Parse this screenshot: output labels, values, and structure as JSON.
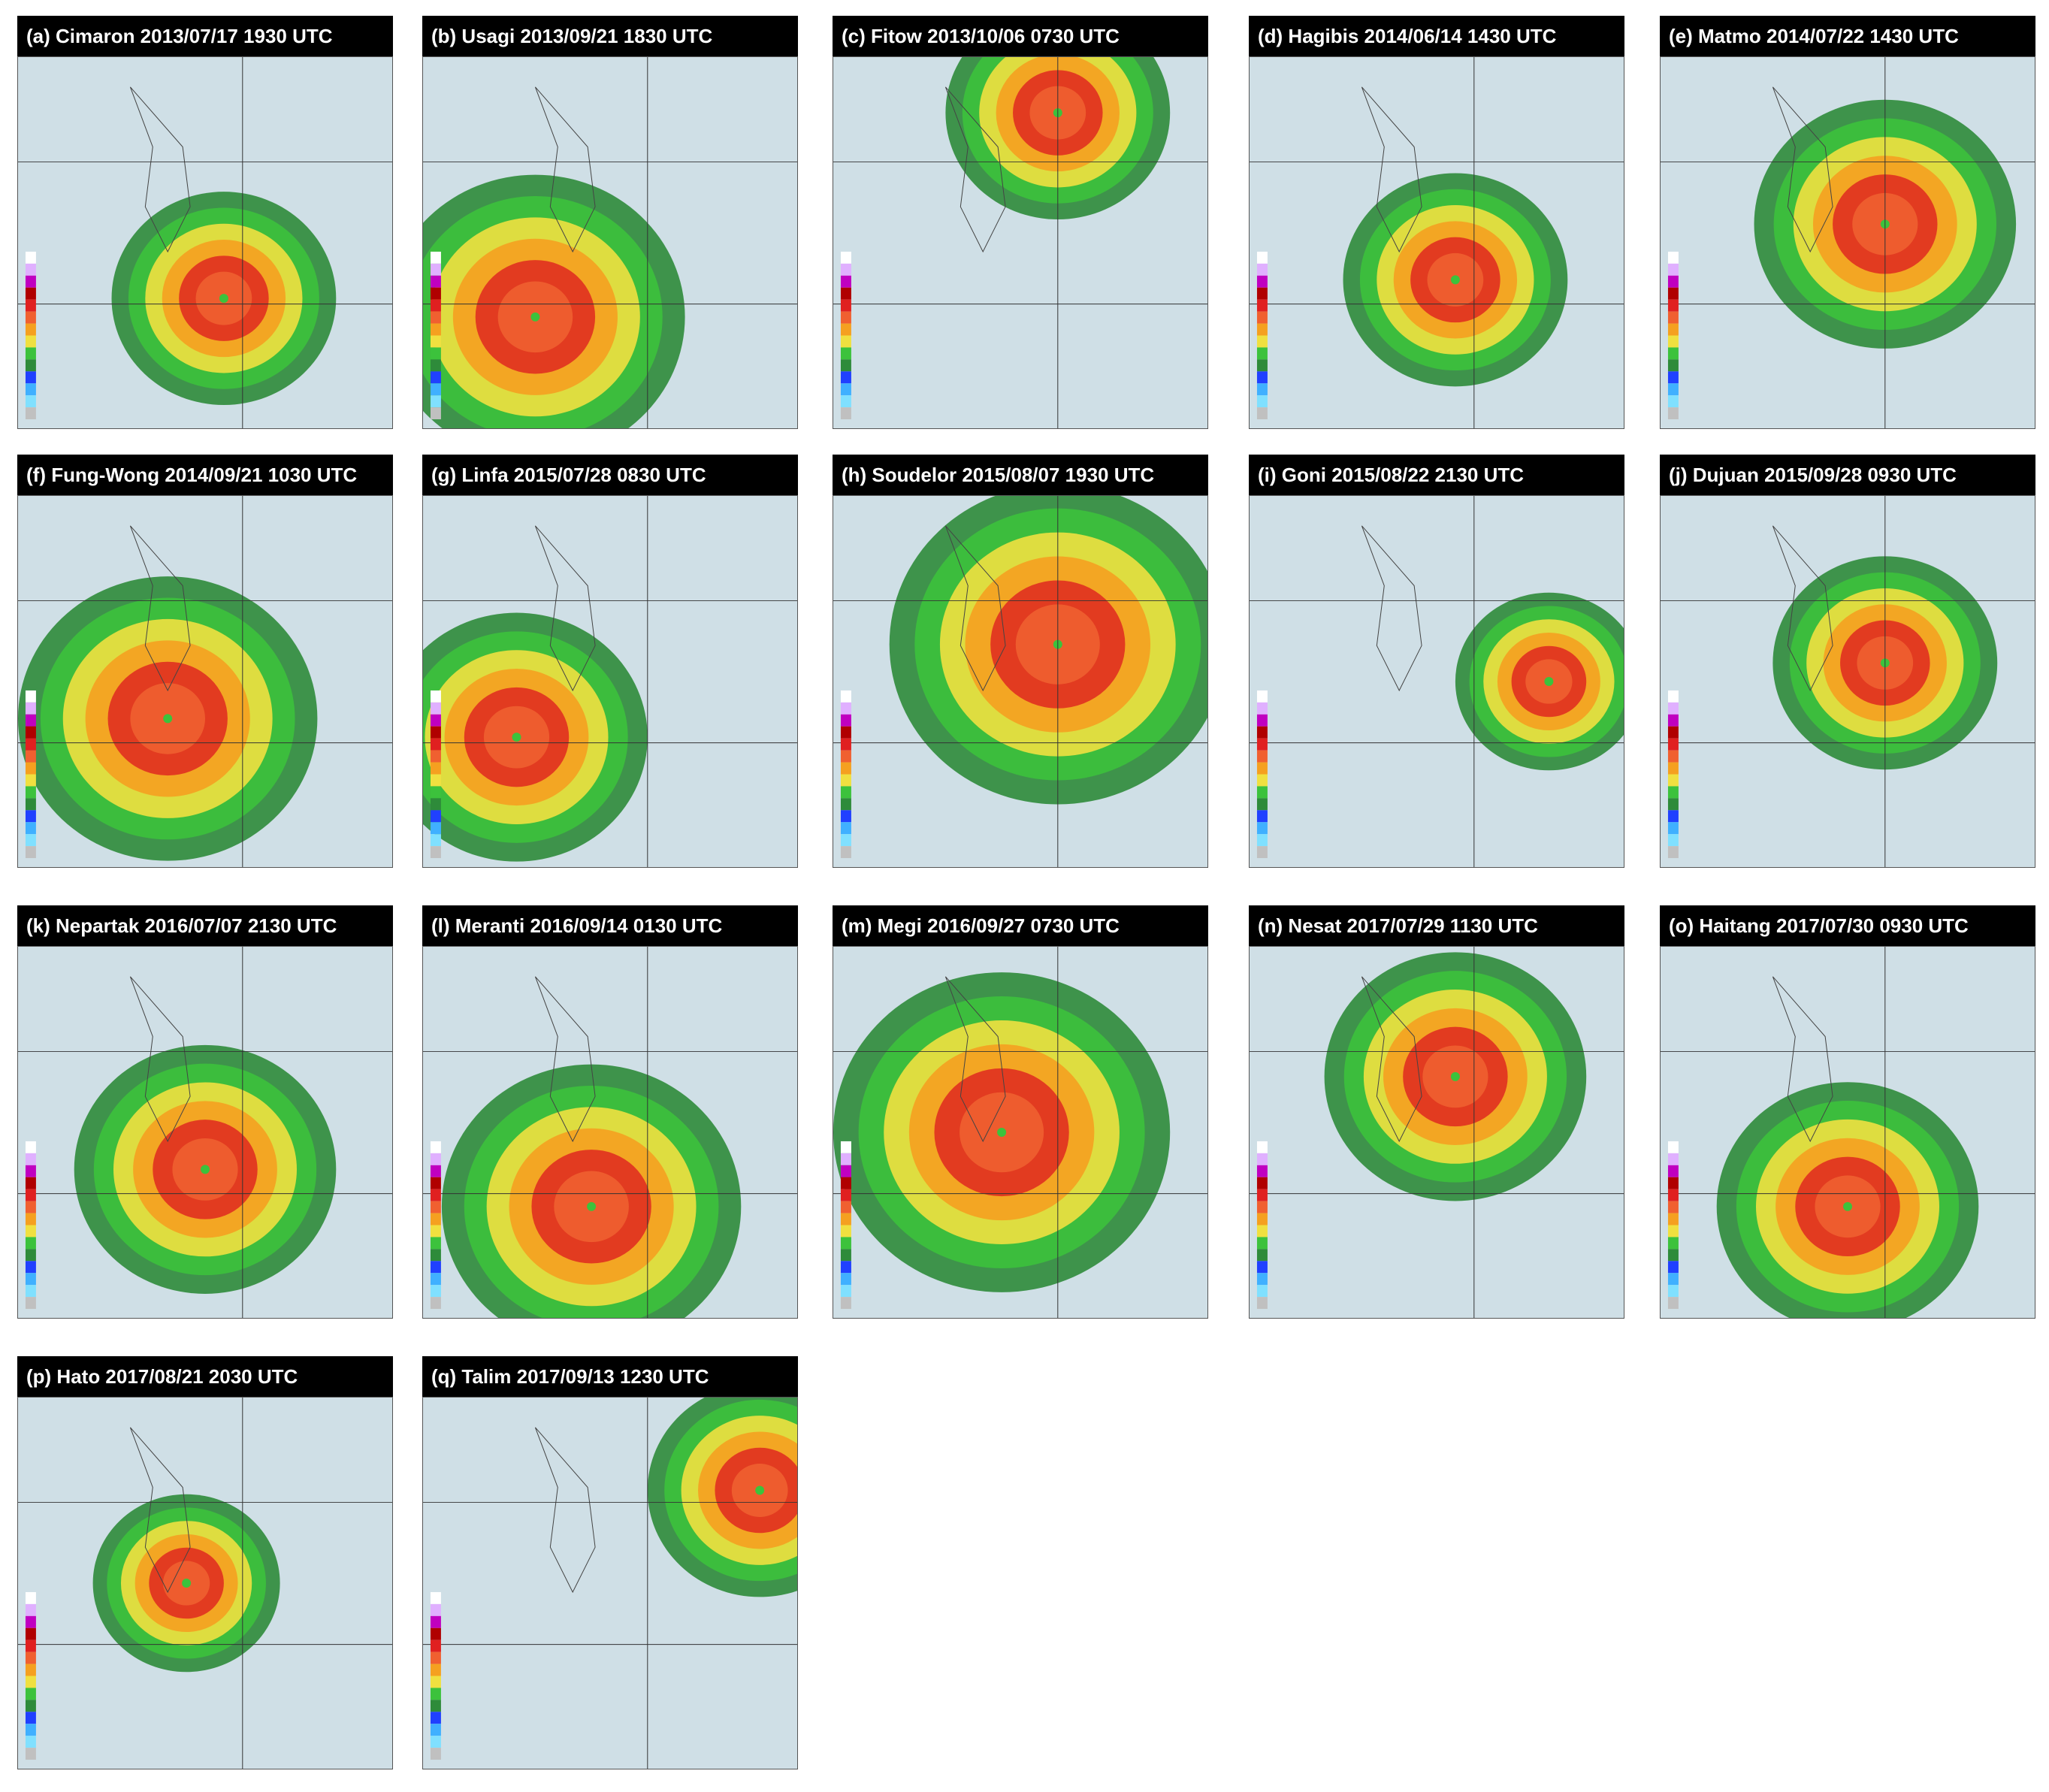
{
  "panels": [
    {
      "title": "(a) Cimaron 2013/07/17 1930 UTC"
    },
    {
      "title": "(b) Usagi 2013/09/21 1830 UTC"
    },
    {
      "title": "(c) Fitow 2013/10/06 0730 UTC"
    },
    {
      "title": "(d) Hagibis 2014/06/14 1430 UTC"
    },
    {
      "title": "(e) Matmo 2014/07/22 1430 UTC"
    },
    {
      "title": "(f) Fung-Wong 2014/09/21 1030 UTC"
    },
    {
      "title": "(g) Linfa 2015/07/28 0830 UTC"
    },
    {
      "title": "(h) Soudelor 2015/08/07 1930 UTC"
    },
    {
      "title": "(i) Goni 2015/08/22 2130 UTC"
    },
    {
      "title": "(j) Dujuan 2015/09/28 0930 UTC"
    },
    {
      "title": "(k) Nepartak 2016/07/07 2130 UTC"
    },
    {
      "title": "(l) Meranti 2016/09/14 0130 UTC"
    },
    {
      "title": "(m) Megi 2016/09/27 0730 UTC"
    },
    {
      "title": "(n) Nesat 2017/07/29 1130 UTC"
    },
    {
      "title": "(o) Haitang 2017/07/30 0930 UTC"
    },
    {
      "title": "(p) Hato 2017/08/21 2030 UTC"
    },
    {
      "title": "(q) Talim 2017/09/13 1230 UTC"
    }
  ]
}
